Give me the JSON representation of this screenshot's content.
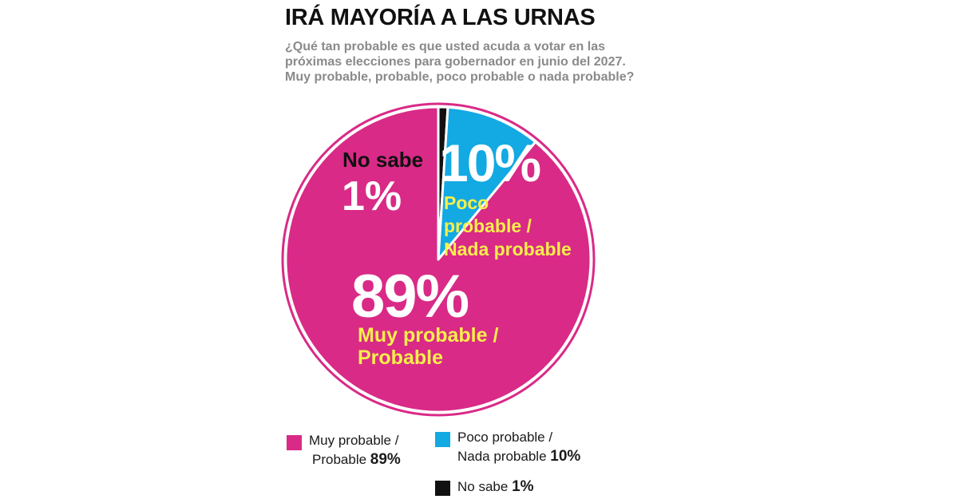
{
  "title": "IRÁ MAYORÍA A LAS URNAS",
  "subtitle": "¿Qué tan probable es que usted acuda a votar en las próximas elecciones para gobernador en junio del 2027. Muy probable, probable, poco probable o nada probable?",
  "colors": {
    "muy_probable": "#d92a87",
    "poco_probable": "#13a9e3",
    "no_sabe": "#111111",
    "label_yellow": "#f6ef4a"
  },
  "chart_data": {
    "type": "pie",
    "slices": [
      {
        "key": "no_sabe",
        "value": 1,
        "pct_label": "1%",
        "label_lines": [
          "No sabe"
        ]
      },
      {
        "key": "poco_probable",
        "value": 10,
        "pct_label": "10%",
        "label_lines": [
          "Poco",
          "probable /",
          "Nada probable"
        ]
      },
      {
        "key": "muy_probable",
        "value": 89,
        "pct_label": "89%",
        "label_lines": [
          "Muy probable /",
          "Probable"
        ]
      }
    ]
  },
  "legend": {
    "muy": {
      "line1": "Muy probable /",
      "line2": "Probable",
      "pct": "89%"
    },
    "poco": {
      "line1": "Poco probable /",
      "line2": "Nada probable",
      "pct": "10%"
    },
    "nosabe": {
      "line1": "No sabe",
      "pct": "1%"
    }
  }
}
